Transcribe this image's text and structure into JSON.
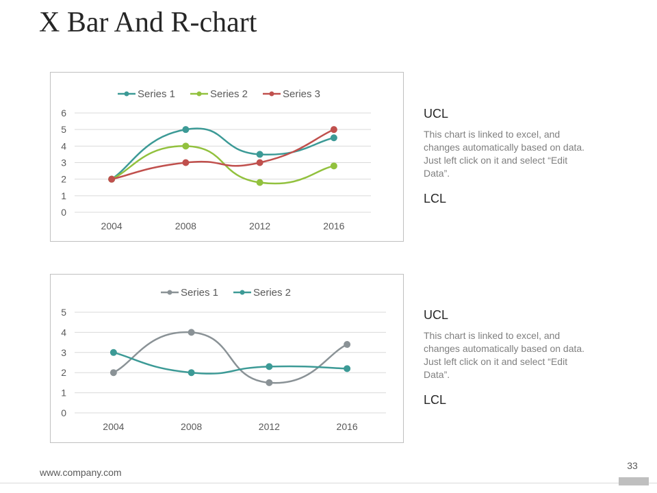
{
  "slide": {
    "title": "X Bar And R-chart",
    "footer_url": "www.company.com",
    "page_number": "33"
  },
  "panels": [
    {
      "ucl": "UCL",
      "description": "This chart is linked to excel, and changes automatically based on data. Just left click on it and select “Edit Data”.",
      "lcl": "LCL"
    },
    {
      "ucl": "UCL",
      "description": "This chart is linked to excel, and changes automatically based on data. Just left click on it and select “Edit Data”.",
      "lcl": "LCL"
    }
  ],
  "chart_data": [
    {
      "type": "line",
      "smooth": true,
      "x": [
        "2004",
        "2008",
        "2012",
        "2016"
      ],
      "series": [
        {
          "name": "Series 1",
          "values": [
            2,
            5,
            3.5,
            4.5
          ],
          "color": "#3c9a96"
        },
        {
          "name": "Series 2",
          "values": [
            2,
            4,
            1.8,
            2.8
          ],
          "color": "#92c13e"
        },
        {
          "name": "Series 3",
          "values": [
            2,
            3,
            3,
            5
          ],
          "color": "#c0504d"
        }
      ],
      "ylim": [
        0,
        6
      ],
      "yticks": [
        0,
        1,
        2,
        3,
        4,
        5,
        6
      ],
      "grid": true,
      "legend": "top"
    },
    {
      "type": "line",
      "smooth": true,
      "x": [
        "2004",
        "2008",
        "2012",
        "2016"
      ],
      "series": [
        {
          "name": "Series 1",
          "values": [
            2,
            4,
            1.5,
            3.4
          ],
          "color": "#8a9296"
        },
        {
          "name": "Series 2",
          "values": [
            3,
            2,
            2.3,
            2.2
          ],
          "color": "#3c9a96"
        }
      ],
      "ylim": [
        0,
        5
      ],
      "yticks": [
        0,
        1,
        2,
        3,
        4,
        5
      ],
      "grid": true,
      "legend": "top"
    }
  ]
}
